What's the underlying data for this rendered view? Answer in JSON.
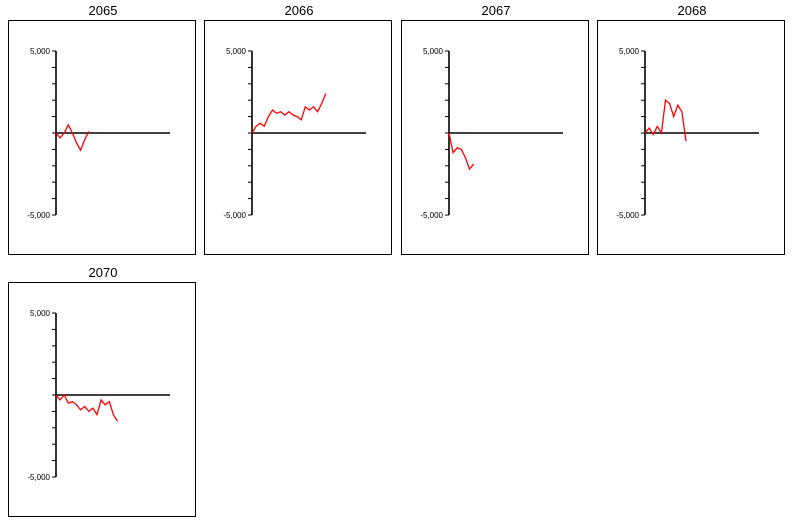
{
  "chart_data": [
    {
      "type": "line",
      "title": "2065",
      "ylim": [
        -5000,
        5000
      ],
      "y_tick_labels": [
        "5,000",
        "-5,000"
      ],
      "series": [
        {
          "color": "#ff0000",
          "values": [
            0,
            -300,
            0,
            500,
            0,
            -600,
            -1050,
            -400,
            100
          ]
        }
      ]
    },
    {
      "type": "line",
      "title": "2066",
      "ylim": [
        -5000,
        5000
      ],
      "y_tick_labels": [
        "5,000",
        "-5,000"
      ],
      "series": [
        {
          "color": "#ff0000",
          "values": [
            0,
            400,
            600,
            400,
            1000,
            1400,
            1200,
            1300,
            1100,
            1300,
            1100,
            1000,
            800,
            1600,
            1400,
            1600,
            1300,
            1800,
            2400
          ]
        }
      ]
    },
    {
      "type": "line",
      "title": "2067",
      "ylim": [
        -5000,
        5000
      ],
      "y_tick_labels": [
        "5,000",
        "-5,000"
      ],
      "series": [
        {
          "color": "#ff0000",
          "values": [
            0,
            -1200,
            -900,
            -1000,
            -1500,
            -2200,
            -1900
          ]
        }
      ]
    },
    {
      "type": "line",
      "title": "2068",
      "ylim": [
        -5000,
        5000
      ],
      "y_tick_labels": [
        "5,000",
        "-5,000"
      ],
      "series": [
        {
          "color": "#ff0000",
          "values": [
            0,
            300,
            -100,
            400,
            0,
            2000,
            1800,
            1000,
            1700,
            1300,
            -500
          ]
        }
      ]
    },
    {
      "type": "line",
      "title": "2070",
      "ylim": [
        -5000,
        5000
      ],
      "y_tick_labels": [
        "5,000",
        "-5,000"
      ],
      "series": [
        {
          "color": "#ff0000",
          "values": [
            0,
            -300,
            0,
            -500,
            -400,
            -600,
            -900,
            -700,
            -1000,
            -800,
            -1200,
            -300,
            -600,
            -400,
            -1200,
            -1600
          ]
        }
      ]
    }
  ]
}
